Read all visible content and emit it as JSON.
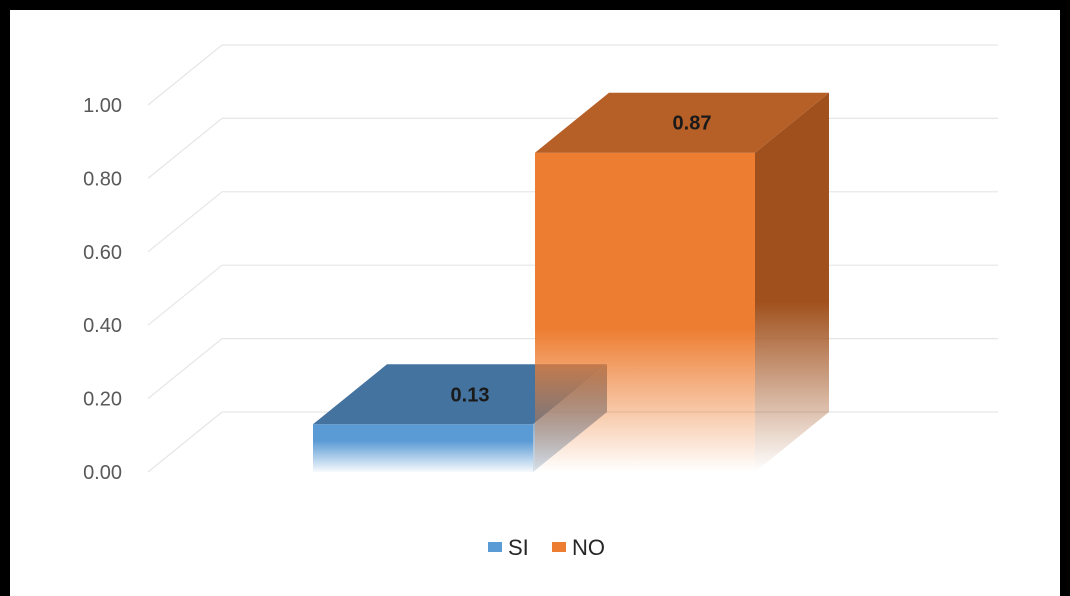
{
  "chart_data": {
    "type": "bar",
    "categories": [
      ""
    ],
    "series": [
      {
        "name": "SI",
        "values": [
          0.13
        ],
        "color": "#5b9bd5"
      },
      {
        "name": "NO",
        "values": [
          0.87
        ],
        "color": "#ed7d31"
      }
    ],
    "data_labels": [
      "0.13",
      "0.87"
    ],
    "y_ticks": [
      "0.00",
      "0.20",
      "0.40",
      "0.60",
      "0.80",
      "1.00"
    ],
    "ylim": [
      0,
      1
    ],
    "grid": true,
    "legend_position": "bottom",
    "style": "3d-column"
  }
}
